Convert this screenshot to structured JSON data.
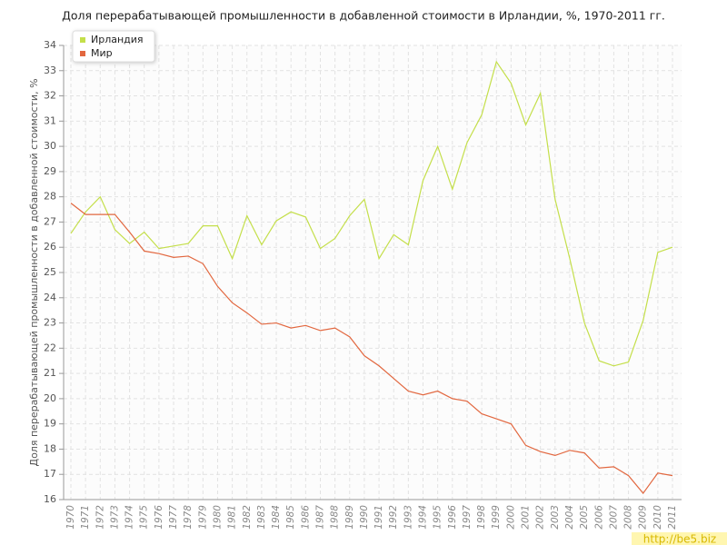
{
  "chart_data": {
    "type": "line",
    "title": "Доля перерабатывающей промышленности в добавленной стоимости в Ирландии, %, 1970-2011 гг.",
    "y_label": "Доля перерабатывающей промышленности в добавленной стоимости, %",
    "watermark": "http://be5.biz",
    "categories": [
      "1970",
      "1971",
      "1972",
      "1973",
      "1974",
      "1975",
      "1976",
      "1977",
      "1978",
      "1979",
      "1980",
      "1981",
      "1982",
      "1983",
      "1984",
      "1985",
      "1986",
      "1987",
      "1988",
      "1989",
      "1990",
      "1991",
      "1992",
      "1993",
      "1994",
      "1995",
      "1996",
      "1997",
      "1998",
      "1999",
      "2000",
      "2001",
      "2002",
      "2003",
      "2004",
      "2005",
      "2006",
      "2007",
      "2008",
      "2009",
      "2010",
      "2011"
    ],
    "series": [
      {
        "name": "Ирландия",
        "color": "#c4df4a",
        "values": [
          26.55,
          27.4,
          28.0,
          26.7,
          26.15,
          26.6,
          25.95,
          26.05,
          26.15,
          26.85,
          26.85,
          25.55,
          27.25,
          26.1,
          27.05,
          27.4,
          27.2,
          25.95,
          26.35,
          27.25,
          27.9,
          25.55,
          26.5,
          26.1,
          28.65,
          30.0,
          28.3,
          30.15,
          31.25,
          33.35,
          32.5,
          30.85,
          32.1,
          27.9,
          25.55,
          23.0,
          21.5,
          21.3,
          21.45,
          23.1,
          25.8,
          26.0
        ]
      },
      {
        "name": "Мир",
        "color": "#e2673f",
        "values": [
          27.75,
          27.3,
          27.3,
          27.3,
          26.6,
          25.85,
          25.75,
          25.6,
          25.65,
          25.35,
          24.45,
          23.8,
          23.4,
          22.95,
          23.0,
          22.8,
          22.9,
          22.7,
          22.8,
          22.45,
          21.7,
          21.3,
          20.8,
          20.3,
          20.15,
          20.3,
          20.0,
          19.9,
          19.4,
          19.2,
          19.0,
          18.15,
          17.9,
          17.75,
          17.95,
          17.85,
          17.25,
          17.3,
          16.95,
          16.25,
          17.05,
          16.95
        ]
      }
    ],
    "ylim": [
      16,
      34
    ],
    "yticks": [
      16,
      17,
      18,
      19,
      20,
      21,
      22,
      23,
      24,
      25,
      26,
      27,
      28,
      29,
      30,
      31,
      32,
      33,
      34
    ],
    "grid": true,
    "legend": "top-left"
  }
}
